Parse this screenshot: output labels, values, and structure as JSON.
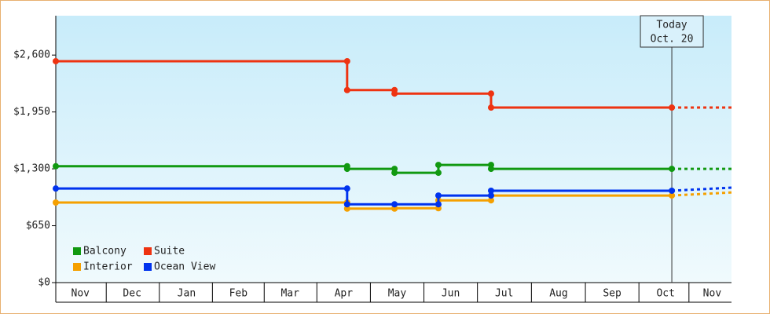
{
  "chart_data": {
    "type": "step-line",
    "xlim": [
      0,
      385
    ],
    "xticks": [
      {
        "value": 14,
        "label": "Nov"
      },
      {
        "value": 43.5,
        "label": "Dec"
      },
      {
        "value": 74.5,
        "label": "Jan"
      },
      {
        "value": 104,
        "label": "Feb"
      },
      {
        "value": 133.5,
        "label": "Mar"
      },
      {
        "value": 164,
        "label": "Apr"
      },
      {
        "value": 194.5,
        "label": "May"
      },
      {
        "value": 225,
        "label": "Jun"
      },
      {
        "value": 255.5,
        "label": "Jul"
      },
      {
        "value": 286.5,
        "label": "Aug"
      },
      {
        "value": 317,
        "label": "Sep"
      },
      {
        "value": 347.5,
        "label": "Oct"
      },
      {
        "value": 374,
        "label": "Nov"
      }
    ],
    "ylim": [
      0,
      3050
    ],
    "yticks": [
      {
        "value": 0,
        "label": "$0"
      },
      {
        "value": 650,
        "label": "$650"
      },
      {
        "value": 1300,
        "label": "$1,300"
      },
      {
        "value": 1950,
        "label": "$1,950"
      },
      {
        "value": 2600,
        "label": "$2,600"
      }
    ],
    "legend": "bottom-left",
    "today": {
      "x": 351,
      "lines": [
        "Today",
        "Oct. 20"
      ]
    },
    "series": [
      {
        "name": "Balcony",
        "color": "#119911",
        "x": [
          0,
          166,
          166,
          193,
          193,
          218,
          218,
          248,
          248,
          351,
          385
        ],
        "values": [
          1330,
          1330,
          1300,
          1300,
          1255,
          1255,
          1345,
          1345,
          1300,
          1300,
          1300
        ]
      },
      {
        "name": "Suite",
        "color": "#ee3311",
        "x": [
          0,
          166,
          166,
          193,
          193,
          248,
          248,
          351,
          385
        ],
        "values": [
          2530,
          2530,
          2200,
          2200,
          2160,
          2160,
          2000,
          2000,
          2000
        ]
      },
      {
        "name": "Interior",
        "color": "#f5a000",
        "x": [
          0,
          166,
          166,
          193,
          193,
          218,
          218,
          248,
          248,
          351,
          385
        ],
        "values": [
          915,
          915,
          845,
          845,
          850,
          850,
          940,
          940,
          995,
          995,
          1030
        ]
      },
      {
        "name": "Ocean View",
        "color": "#0033ee",
        "x": [
          0,
          166,
          166,
          193,
          218,
          218,
          248,
          248,
          351,
          385
        ],
        "values": [
          1075,
          1075,
          895,
          895,
          895,
          995,
          995,
          1050,
          1050,
          1085
        ]
      }
    ]
  }
}
